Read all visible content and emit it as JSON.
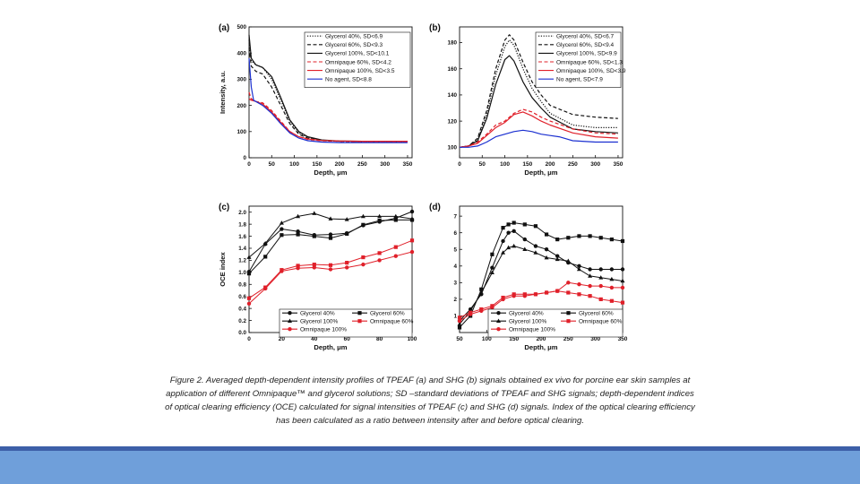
{
  "caption": "Figure 2. Averaged depth-dependent intensity profiles of TPEAF (a) and SHG (b) signals obtained ex vivo for porcine ear skin samples at application of different Omnipaque™ and glycerol solutions; SD –standard deviations of TPEAF and SHG signals; depth-dependent indices of optical clearing efficiency (OCE) calculated for signal intensities of TPEAF (c) and SHG (d) signals. Index of the optical clearing efficiency has been calculated as a ratio between intensity after and before optical clearing.",
  "colors": {
    "footer_dark": "#3d5fa8",
    "footer_light": "#6f9fda",
    "red": "#e0202a",
    "blue": "#1a2fd0",
    "black": "#111111"
  },
  "chart_data": [
    {
      "panel": "(a)",
      "type": "line",
      "xlabel": "Depth, μm",
      "ylabel": "Intensity, a.u.",
      "xlim": [
        0,
        360
      ],
      "ylim": [
        0,
        500
      ],
      "xticks": [
        0,
        50,
        100,
        150,
        200,
        250,
        300,
        350
      ],
      "yticks": [
        0,
        100,
        200,
        300,
        400,
        500
      ],
      "legend_position": "top-right",
      "series": [
        {
          "name": "Glycerol 40%, SD<6.9",
          "color": "#111111",
          "dash": "dot",
          "x": [
            0,
            5,
            15,
            30,
            50,
            70,
            90,
            110,
            130,
            160,
            200,
            250,
            300,
            350
          ],
          "y": [
            450,
            370,
            355,
            345,
            300,
            220,
            140,
            95,
            78,
            66,
            63,
            62,
            62,
            62
          ]
        },
        {
          "name": "Glycerol 60%, SD<9.3",
          "color": "#111111",
          "dash": "dash",
          "x": [
            0,
            5,
            15,
            30,
            50,
            70,
            90,
            110,
            130,
            160,
            200,
            250,
            300,
            350
          ],
          "y": [
            420,
            350,
            330,
            320,
            270,
            200,
            130,
            90,
            75,
            66,
            63,
            62,
            62,
            62
          ]
        },
        {
          "name": "Glycerol 100%, SD<10.1",
          "color": "#111111",
          "dash": "solid",
          "x": [
            0,
            5,
            15,
            30,
            50,
            70,
            90,
            110,
            130,
            160,
            200,
            250,
            300,
            350
          ],
          "y": [
            470,
            380,
            355,
            345,
            310,
            230,
            145,
            100,
            80,
            68,
            64,
            63,
            63,
            63
          ]
        },
        {
          "name": "Omnipaque 60%, SD<4.2",
          "color": "#e0202a",
          "dash": "dash",
          "x": [
            0,
            5,
            15,
            30,
            50,
            70,
            90,
            110,
            130,
            160,
            200,
            250,
            300,
            350
          ],
          "y": [
            250,
            225,
            215,
            210,
            180,
            140,
            100,
            80,
            70,
            65,
            63,
            62,
            62,
            62
          ]
        },
        {
          "name": "Omnipaque 100%, SD<3.5",
          "color": "#e0202a",
          "dash": "solid",
          "x": [
            0,
            5,
            15,
            30,
            50,
            70,
            90,
            110,
            130,
            160,
            200,
            250,
            300,
            350
          ],
          "y": [
            225,
            220,
            215,
            205,
            175,
            135,
            100,
            80,
            72,
            66,
            64,
            63,
            63,
            63
          ]
        },
        {
          "name": "No agent, SD<8.8",
          "color": "#1a2fd0",
          "dash": "solid",
          "x": [
            0,
            5,
            10,
            20,
            30,
            50,
            70,
            90,
            110,
            130,
            160,
            200,
            250,
            300,
            350
          ],
          "y": [
            380,
            270,
            220,
            210,
            200,
            170,
            130,
            95,
            75,
            65,
            60,
            58,
            58,
            58,
            58
          ]
        }
      ]
    },
    {
      "panel": "(b)",
      "type": "line",
      "xlabel": "Depth, μm",
      "ylabel": "",
      "xlim": [
        0,
        360
      ],
      "ylim": [
        92,
        192
      ],
      "xticks": [
        0,
        50,
        100,
        150,
        200,
        250,
        300,
        350
      ],
      "yticks": [
        100,
        120,
        140,
        160,
        180
      ],
      "legend_position": "top-right",
      "series": [
        {
          "name": "Glycerol 40%, SD<6.7",
          "color": "#111111",
          "dash": "dot",
          "x": [
            0,
            20,
            40,
            60,
            80,
            100,
            110,
            120,
            140,
            160,
            180,
            200,
            250,
            300,
            350
          ],
          "y": [
            100,
            101,
            106,
            125,
            155,
            177,
            182,
            178,
            160,
            145,
            135,
            126,
            117,
            115,
            115
          ]
        },
        {
          "name": "Glycerol 60%, SD<9.4",
          "color": "#111111",
          "dash": "dash",
          "x": [
            0,
            20,
            40,
            60,
            80,
            100,
            110,
            120,
            140,
            160,
            180,
            200,
            250,
            300,
            350
          ],
          "y": [
            100,
            101,
            107,
            128,
            160,
            182,
            186,
            182,
            165,
            150,
            140,
            132,
            125,
            123,
            122
          ]
        },
        {
          "name": "Glycerol 100%, SD<9.9",
          "color": "#111111",
          "dash": "solid",
          "x": [
            0,
            20,
            40,
            60,
            80,
            100,
            110,
            120,
            140,
            160,
            180,
            200,
            250,
            300,
            350
          ],
          "y": [
            100,
            101,
            105,
            122,
            148,
            167,
            170,
            166,
            150,
            138,
            130,
            123,
            114,
            112,
            111
          ]
        },
        {
          "name": "Omnipaque 60%, SD<1.3",
          "color": "#e0202a",
          "dash": "dash",
          "x": [
            0,
            20,
            40,
            60,
            80,
            100,
            120,
            140,
            160,
            180,
            200,
            250,
            300,
            350
          ],
          "y": [
            100,
            101,
            104,
            110,
            117,
            120,
            126,
            129,
            127,
            123,
            120,
            114,
            111,
            110
          ]
        },
        {
          "name": "Omnipaque 100%, SD<3.9",
          "color": "#e0202a",
          "dash": "solid",
          "x": [
            0,
            20,
            40,
            60,
            80,
            100,
            120,
            140,
            160,
            180,
            200,
            250,
            300,
            350
          ],
          "y": [
            100,
            101,
            103,
            109,
            115,
            119,
            125,
            127,
            124,
            120,
            117,
            111,
            108,
            107
          ]
        },
        {
          "name": "No agent, SD<7.9",
          "color": "#1a2fd0",
          "dash": "solid",
          "x": [
            0,
            20,
            40,
            60,
            80,
            100,
            120,
            140,
            160,
            180,
            200,
            220,
            250,
            300,
            350
          ],
          "y": [
            100,
            100,
            101,
            104,
            108,
            110,
            112,
            113,
            112,
            110,
            109,
            108,
            105,
            104,
            104
          ]
        }
      ]
    },
    {
      "panel": "(c)",
      "type": "line",
      "xlabel": "Depth, μm",
      "ylabel": "OCE index",
      "xlim": [
        0,
        100
      ],
      "ylim": [
        0,
        2.1
      ],
      "xticks": [
        0,
        20,
        40,
        60,
        80,
        100
      ],
      "yticks": [
        0.0,
        0.2,
        0.4,
        0.6,
        0.8,
        1.0,
        1.2,
        1.4,
        1.6,
        1.8,
        2.0
      ],
      "legend_position": "bottom-center",
      "legend_columns": 2,
      "series": [
        {
          "name": "Glycerol 40%",
          "color": "#111111",
          "marker": "circle",
          "x": [
            0,
            10,
            20,
            30,
            40,
            50,
            60,
            70,
            80,
            90,
            100
          ],
          "y": [
            1.01,
            1.47,
            1.72,
            1.68,
            1.62,
            1.63,
            1.65,
            1.78,
            1.84,
            1.9,
            2.01
          ]
        },
        {
          "name": "Glycerol 60%",
          "color": "#111111",
          "marker": "square",
          "x": [
            0,
            10,
            20,
            30,
            40,
            50,
            60,
            70,
            80,
            90,
            100
          ],
          "y": [
            0.98,
            1.26,
            1.62,
            1.63,
            1.6,
            1.57,
            1.64,
            1.79,
            1.86,
            1.87,
            1.87
          ]
        },
        {
          "name": "Glycerol 100%",
          "color": "#111111",
          "marker": "triangle",
          "x": [
            0,
            10,
            20,
            30,
            40,
            50,
            60,
            70,
            80,
            90,
            100
          ],
          "y": [
            1.25,
            1.48,
            1.82,
            1.93,
            1.98,
            1.89,
            1.88,
            1.93,
            1.93,
            1.93,
            1.89
          ]
        },
        {
          "name": "Omnipaque 60%",
          "color": "#e0202a",
          "marker": "square",
          "x": [
            0,
            10,
            20,
            30,
            40,
            50,
            60,
            70,
            80,
            90,
            100
          ],
          "y": [
            0.57,
            0.75,
            1.04,
            1.11,
            1.13,
            1.12,
            1.16,
            1.25,
            1.32,
            1.42,
            1.53
          ]
        },
        {
          "name": "Omnipaque 100%",
          "color": "#e0202a",
          "marker": "circle",
          "x": [
            0,
            10,
            20,
            30,
            40,
            50,
            60,
            70,
            80,
            90,
            100
          ],
          "y": [
            0.48,
            0.73,
            1.02,
            1.07,
            1.08,
            1.05,
            1.08,
            1.13,
            1.2,
            1.27,
            1.34
          ]
        }
      ]
    },
    {
      "panel": "(d)",
      "type": "line",
      "xlabel": "Depth, μm",
      "ylabel": "",
      "xlim": [
        50,
        350
      ],
      "ylim": [
        0,
        7.6
      ],
      "xticks": [
        50,
        100,
        150,
        200,
        250,
        300,
        350
      ],
      "yticks": [
        1,
        2,
        3,
        4,
        5,
        6,
        7
      ],
      "legend_position": "bottom-center",
      "legend_columns": 2,
      "series": [
        {
          "name": "Glycerol 40%",
          "color": "#111111",
          "marker": "circle",
          "x": [
            50,
            70,
            90,
            110,
            130,
            140,
            150,
            170,
            190,
            210,
            230,
            250,
            270,
            290,
            310,
            330,
            350
          ],
          "y": [
            0.7,
            1.4,
            2.3,
            3.9,
            5.5,
            6.0,
            6.1,
            5.6,
            5.2,
            5.0,
            4.6,
            4.2,
            4.0,
            3.8,
            3.8,
            3.8,
            3.8
          ]
        },
        {
          "name": "Glycerol 60%",
          "color": "#111111",
          "marker": "square",
          "x": [
            50,
            70,
            90,
            110,
            130,
            140,
            150,
            170,
            190,
            210,
            230,
            250,
            270,
            290,
            310,
            330,
            350
          ],
          "y": [
            0.3,
            1.0,
            2.6,
            4.7,
            6.3,
            6.5,
            6.6,
            6.5,
            6.4,
            5.9,
            5.6,
            5.7,
            5.8,
            5.8,
            5.7,
            5.6,
            5.5
          ]
        },
        {
          "name": "Glycerol 100%",
          "color": "#111111",
          "marker": "triangle",
          "x": [
            50,
            70,
            90,
            110,
            130,
            140,
            150,
            170,
            190,
            210,
            230,
            250,
            270,
            290,
            310,
            330,
            350
          ],
          "y": [
            0.5,
            1.3,
            2.4,
            3.6,
            4.8,
            5.1,
            5.2,
            5.0,
            4.8,
            4.5,
            4.4,
            4.3,
            3.8,
            3.4,
            3.3,
            3.2,
            3.1
          ]
        },
        {
          "name": "Omnipaque 60%",
          "color": "#e0202a",
          "marker": "square",
          "x": [
            50,
            70,
            90,
            110,
            130,
            150,
            170,
            190,
            210,
            230,
            250,
            270,
            290,
            310,
            330,
            350
          ],
          "y": [
            0.9,
            1.2,
            1.4,
            1.6,
            2.1,
            2.3,
            2.3,
            2.3,
            2.4,
            2.5,
            2.4,
            2.3,
            2.2,
            2.0,
            1.9,
            1.8
          ]
        },
        {
          "name": "Omnipaque 100%",
          "color": "#e0202a",
          "marker": "circle",
          "x": [
            50,
            70,
            90,
            110,
            130,
            150,
            170,
            190,
            210,
            230,
            250,
            270,
            290,
            310,
            330,
            350
          ],
          "y": [
            0.7,
            1.1,
            1.3,
            1.5,
            2.0,
            2.2,
            2.2,
            2.3,
            2.4,
            2.5,
            3.0,
            2.9,
            2.8,
            2.8,
            2.7,
            2.7
          ]
        }
      ]
    }
  ]
}
